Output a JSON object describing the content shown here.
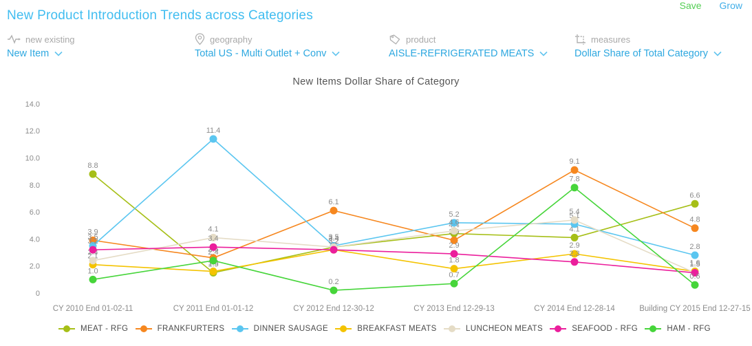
{
  "header": {
    "title": "New Product Introduction Trends across Categories",
    "save_label": "Save",
    "grow_label": "Grow"
  },
  "filters": [
    {
      "icon": "pulse-icon",
      "label": "new existing",
      "value": "New Item"
    },
    {
      "icon": "map-pin-icon",
      "label": "geography",
      "value": "Total US - Multi Outlet + Conv"
    },
    {
      "icon": "tag-icon",
      "label": "product",
      "value": "AISLE-REFRIGERATED MEATS"
    },
    {
      "icon": "crop-icon",
      "label": "measures",
      "value": "Dollar Share of Total Category"
    }
  ],
  "chart_data": {
    "type": "line",
    "title": "New Items Dollar Share of Category",
    "categories": [
      "CY 2010 End 01-02-11",
      "CY 2011 End 01-01-12",
      "CY 2012 End 12-30-12",
      "CY 2013 End 12-29-13",
      "CY 2014 End 12-28-14",
      "Building CY 2015 End 12-27-15"
    ],
    "series": [
      {
        "name": "MEAT - RFG",
        "color": "#a6bf17",
        "values": [
          8.8,
          1.5,
          3.4,
          4.4,
          4.1,
          6.6
        ]
      },
      {
        "name": "FRANKFURTERS",
        "color": "#f6871f",
        "values": [
          3.9,
          2.6,
          6.1,
          3.9,
          9.1,
          4.8
        ]
      },
      {
        "name": "DINNER SAUSAGE",
        "color": "#5bc6f0",
        "values": [
          3.5,
          11.4,
          3.5,
          5.2,
          5.1,
          2.8
        ]
      },
      {
        "name": "BREAKFAST MEATS",
        "color": "#f4c300",
        "values": [
          2.1,
          1.6,
          3.2,
          1.8,
          2.9,
          1.6
        ]
      },
      {
        "name": "LUNCHEON MEATS",
        "color": "#e5dcc6",
        "values": [
          2.4,
          4.1,
          3.4,
          4.6,
          5.4,
          1.5
        ]
      },
      {
        "name": "SEAFOOD - RFG",
        "color": "#eb1e9c",
        "values": [
          3.2,
          3.4,
          3.2,
          2.9,
          2.3,
          1.5
        ]
      },
      {
        "name": "HAM - RFG",
        "color": "#46d53a",
        "values": [
          1.0,
          2.4,
          0.2,
          0.7,
          7.8,
          0.6
        ]
      }
    ],
    "ylim": [
      0,
      14
    ],
    "yticks": [
      {
        "value": 14,
        "label": "14.0"
      },
      {
        "value": 12,
        "label": "12.0"
      },
      {
        "value": 10,
        "label": "10.0"
      },
      {
        "value": 8,
        "label": "8.0"
      },
      {
        "value": 6,
        "label": "6.0"
      },
      {
        "value": 4,
        "label": "4.0"
      },
      {
        "value": 2,
        "label": "2.0"
      },
      {
        "value": 0,
        "label": "0"
      }
    ],
    "grid": false,
    "data_labels": true,
    "legend_position": "bottom"
  }
}
